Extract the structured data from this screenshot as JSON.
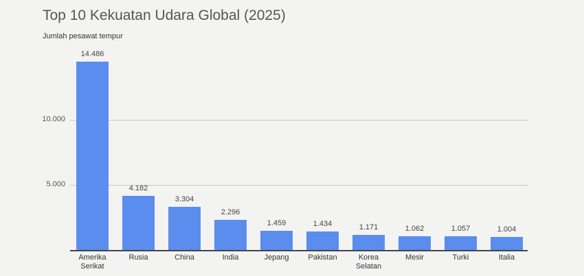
{
  "header": {
    "title": "Top 10 Kekuatan Udara Global (2025)",
    "subtitle": "Jumlah pesawat tempur"
  },
  "colors": {
    "bar": "#5b8def",
    "background": "#f3f3f2"
  },
  "chart_data": {
    "type": "bar",
    "title": "Top 10 Kekuatan Udara Global (2025)",
    "subtitle": "Jumlah pesawat tempur",
    "xlabel": "",
    "ylabel": "Jumlah pesawat tempur",
    "categories": [
      "Amerika Serikat",
      "Rusia",
      "China",
      "India",
      "Jepang",
      "Pakistan",
      "Korea Selatan",
      "Mesir",
      "Turki",
      "Italia"
    ],
    "category_lines": [
      [
        "Amerika",
        "Serikat"
      ],
      [
        "Rusia"
      ],
      [
        "China"
      ],
      [
        "India"
      ],
      [
        "Jepang"
      ],
      [
        "Pakistan"
      ],
      [
        "Korea",
        "Selatan"
      ],
      [
        "Mesir"
      ],
      [
        "Turki"
      ],
      [
        "Italia"
      ]
    ],
    "values": [
      14486,
      4182,
      3304,
      2296,
      1459,
      1434,
      1171,
      1062,
      1057,
      1004
    ],
    "value_labels": [
      "14.486",
      "4.182",
      "3.304",
      "2.296",
      "1.459",
      "1.434",
      "1.171",
      "1.062",
      "1.057",
      "1.004"
    ],
    "yticks": [
      {
        "value": 5000,
        "label": "5.000"
      },
      {
        "value": 10000,
        "label": "10.000"
      }
    ],
    "ylim": [
      0,
      15000
    ],
    "grid": true,
    "legend": "none"
  }
}
